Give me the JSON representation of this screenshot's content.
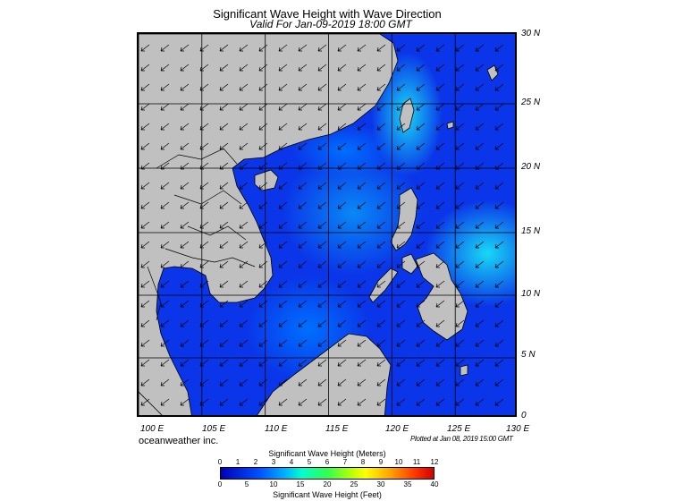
{
  "title": "Significant Wave Height with Wave Direction",
  "valid": "Valid For Jan-09-2019 18:00 GMT",
  "lat_labels": [
    "30 N",
    "25 N",
    "20 N",
    "15 N",
    "10 N",
    "5 N",
    "0"
  ],
  "lon_labels": [
    "100 E",
    "105 E",
    "110 E",
    "115 E",
    "120 E",
    "125 E",
    "130 E"
  ],
  "brand": "oceanweather inc.",
  "plotted": "Plotted at Jan 08, 2019 15:00 GMT",
  "colorbar": {
    "meters_title": "Significant Wave Height (Meters)",
    "feet_title": "Significant Wave Height (Feet)",
    "meters_ticks": [
      "0",
      "1",
      "2",
      "3",
      "4",
      "5",
      "6",
      "7",
      "8",
      "9",
      "10",
      "11",
      "12"
    ],
    "feet_ticks": [
      "0",
      "5",
      "10",
      "15",
      "20",
      "25",
      "30",
      "35",
      "40"
    ]
  },
  "colors": {
    "sea": "#0a35e8",
    "land": "#c0c0c0",
    "grid": "#000000"
  }
}
